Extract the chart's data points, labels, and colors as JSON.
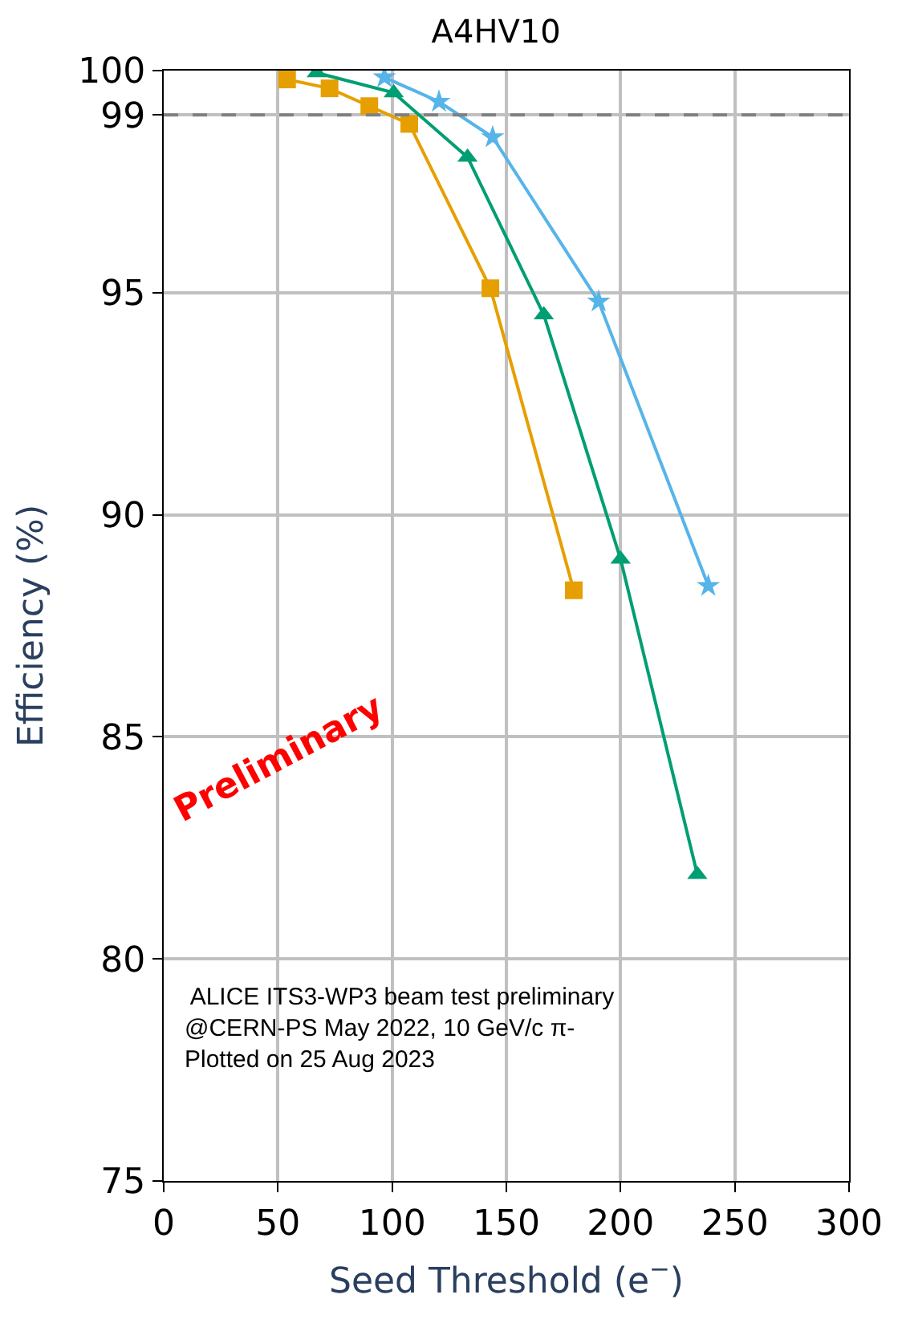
{
  "chart_data": {
    "type": "line",
    "title": "A4HV10",
    "xlabel": "Seed Threshold (e$^{−}$)",
    "ylabel": "Efficiency (%)",
    "series": [
      {
        "color": "#e69f00",
        "marker": "square",
        "x": [
          54,
          72.6,
          90,
          107.5,
          143,
          179.5
        ],
        "values": [
          99.8,
          99.6,
          99.2,
          98.8,
          95.1,
          88.3
        ]
      },
      {
        "color": "#009e73",
        "marker": "triangle",
        "x": [
          67,
          100.7,
          133,
          166.4,
          200,
          233.6
        ],
        "values": [
          99.95,
          99.5,
          98.05,
          94.5,
          89.0,
          81.9
        ]
      },
      {
        "color": "#56b4e9",
        "marker": "star",
        "x": [
          96.6,
          120.5,
          144,
          190.4,
          238.4
        ],
        "values": [
          99.85,
          99.3,
          98.5,
          94.8,
          88.4
        ]
      }
    ],
    "xlim": [
      0,
      300
    ],
    "xticks": [
      0,
      50,
      100,
      150,
      200,
      250,
      300
    ],
    "ylim": [
      75,
      100
    ],
    "yticks": [
      75,
      80,
      85,
      90,
      95,
      99,
      100
    ],
    "grid": true,
    "line_style": "solid",
    "ref_lines": [
      {
        "axis": "y",
        "value": 99,
        "color": "#808080",
        "line_style": "dashed"
      }
    ],
    "annotations": [
      "Preliminary",
      " ALICE ITS3-WP3 beam test preliminary\n@CERN-PS May 2022, 10 GeV/c π-\nPlotted on 25 Aug 2023"
    ]
  }
}
